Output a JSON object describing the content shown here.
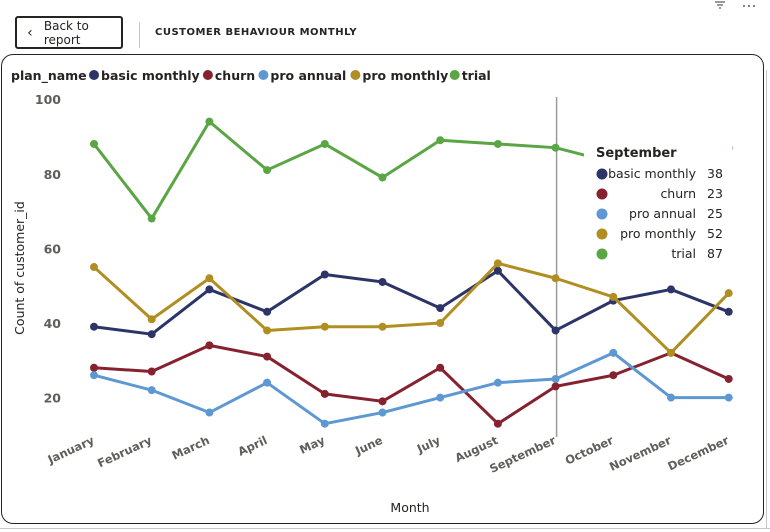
{
  "header": {
    "back_label": "Back to report",
    "back_icon": "chevron-left-icon",
    "title": "CUSTOMER BEHAVIOUR MONTHLY",
    "filter_icon": "filter-icon",
    "more_icon": "more-options-icon"
  },
  "chart_data": {
    "type": "line",
    "legend_title": "plan_name",
    "legend_position": "top-left",
    "xlabel": "Month",
    "ylabel": "Count of customer_id",
    "ylim": [
      10,
      100
    ],
    "yticks": [
      20,
      40,
      60,
      80,
      100
    ],
    "grid": false,
    "categories": [
      "January",
      "February",
      "March",
      "April",
      "May",
      "June",
      "July",
      "August",
      "September",
      "October",
      "November",
      "December"
    ],
    "series": [
      {
        "name": "basic monthly",
        "color": "#2c3468",
        "values": [
          39,
          37,
          49,
          43,
          53,
          51,
          44,
          54,
          38,
          46,
          49,
          43
        ]
      },
      {
        "name": "churn",
        "color": "#86222f",
        "values": [
          28,
          27,
          34,
          31,
          21,
          19,
          28,
          13,
          23,
          26,
          32,
          25
        ]
      },
      {
        "name": "pro annual",
        "color": "#5e98d3",
        "values": [
          26,
          22,
          16,
          24,
          13,
          16,
          20,
          24,
          25,
          32,
          20,
          20
        ]
      },
      {
        "name": "pro monthly",
        "color": "#b08e22",
        "values": [
          55,
          41,
          52,
          38,
          39,
          39,
          40,
          56,
          52,
          47,
          32,
          48
        ]
      },
      {
        "name": "trial",
        "color": "#5aa544",
        "values": [
          88,
          68,
          94,
          81,
          88,
          79,
          89,
          88,
          87,
          83,
          87,
          87
        ]
      }
    ],
    "tooltip": {
      "category": "September",
      "items": [
        {
          "name": "basic monthly",
          "value": "38"
        },
        {
          "name": "churn",
          "value": "23"
        },
        {
          "name": "pro annual",
          "value": "25"
        },
        {
          "name": "pro monthly",
          "value": "52"
        },
        {
          "name": "trial",
          "value": "87"
        }
      ]
    }
  }
}
